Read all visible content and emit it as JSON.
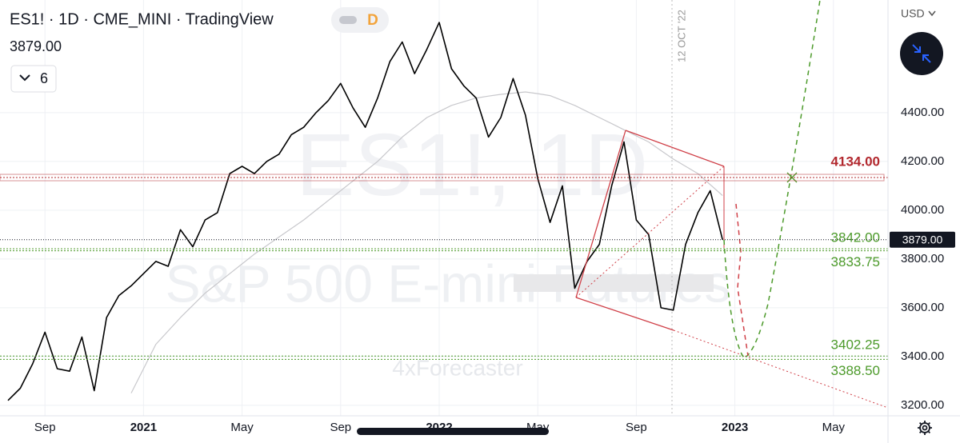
{
  "chart_data": {
    "type": "line",
    "title": "ES1! · 1D · CME_MINI · TradingView",
    "interval_button": "D",
    "indicator_count": "6",
    "currency": "USD",
    "last_price": {
      "value": 3879,
      "label": "3879.00"
    },
    "watermark": "ES1!, 1D",
    "watermark_subtitle": "S&P 500 E-mini Futures",
    "credit": "4xForecaster",
    "annotation": "12 OCT '22",
    "categories": [
      null,
      null,
      null,
      "Sep",
      null,
      null,
      null,
      null,
      null,
      null,
      null,
      "2021",
      null,
      null,
      null,
      null,
      null,
      null,
      null,
      "May",
      null,
      null,
      null,
      null,
      null,
      null,
      null,
      "Sep",
      null,
      null,
      null,
      null,
      null,
      null,
      null,
      "2022",
      null,
      null,
      null,
      null,
      null,
      null,
      null,
      "May",
      null,
      null,
      null,
      null,
      null,
      null,
      null,
      "Sep",
      null,
      null,
      null,
      null,
      null,
      null,
      null,
      "2023",
      null,
      null,
      null,
      null,
      null,
      null,
      null,
      "May",
      null,
      null,
      null,
      null
    ],
    "series": [
      {
        "name": "ES1!",
        "color": "#000000",
        "values": [
          3220,
          3270,
          3370,
          3500,
          3350,
          3340,
          3480,
          3260,
          3560,
          3650,
          3690,
          3740,
          3790,
          3770,
          3920,
          3850,
          3960,
          3990,
          4150,
          4180,
          4150,
          4200,
          4230,
          4310,
          4340,
          4400,
          4450,
          4520,
          4420,
          4340,
          4460,
          4610,
          4690,
          4560,
          4660,
          4770,
          4580,
          4510,
          4460,
          4300,
          4380,
          4540,
          4390,
          4130,
          3950,
          4100,
          3680,
          3790,
          3860,
          4100,
          4280,
          3960,
          3900,
          3600,
          3590,
          3860,
          3990,
          4080,
          3879,
          null,
          null,
          null,
          null,
          null,
          null,
          null,
          null,
          null,
          null,
          null,
          null,
          null
        ]
      },
      {
        "color": "#c8c8cc",
        "values": [
          null,
          null,
          null,
          null,
          null,
          null,
          null,
          null,
          null,
          null,
          3250,
          3350,
          3450,
          3505,
          3560,
          3610,
          3660,
          3700,
          3740,
          3780,
          3820,
          3855,
          3890,
          3925,
          3960,
          4000,
          4040,
          4080,
          4120,
          4160,
          4200,
          4250,
          4300,
          4340,
          4380,
          4405,
          4430,
          4445,
          4460,
          4468,
          4475,
          4480,
          4485,
          4478,
          4470,
          4450,
          4430,
          4405,
          4380,
          4355,
          4330,
          4305,
          4280,
          4245,
          4210,
          4180,
          4150,
          4105,
          4060,
          null,
          null,
          null,
          null,
          null,
          null,
          null,
          null,
          null,
          null,
          null,
          null,
          null
        ]
      }
    ],
    "levels": [
      {
        "value": 4134,
        "label": "4134.00",
        "color": "#b2282e"
      },
      {
        "value": 3842,
        "label": "3842.00",
        "color": "#4c9a2a"
      },
      {
        "value": 3833.75,
        "label": "3833.75",
        "color": "#4c9a2a"
      },
      {
        "value": 3402.25,
        "label": "3402.25",
        "color": "#4c9a2a"
      },
      {
        "value": 3388.5,
        "label": "3388.50",
        "color": "#4c9a2a"
      }
    ],
    "ylim": [
      3157,
      4862
    ],
    "yticks": [
      {
        "value": 3200,
        "label": "3200.00"
      },
      {
        "value": 3400,
        "label": "3400.00"
      },
      {
        "value": 3600,
        "label": "3600.00"
      },
      {
        "value": 3800,
        "label": "3800.00"
      },
      {
        "value": 4000,
        "label": "4000.00"
      },
      {
        "value": 4200,
        "label": "4200.00"
      },
      {
        "value": 4400,
        "label": "4400.00"
      }
    ],
    "grid": true
  }
}
